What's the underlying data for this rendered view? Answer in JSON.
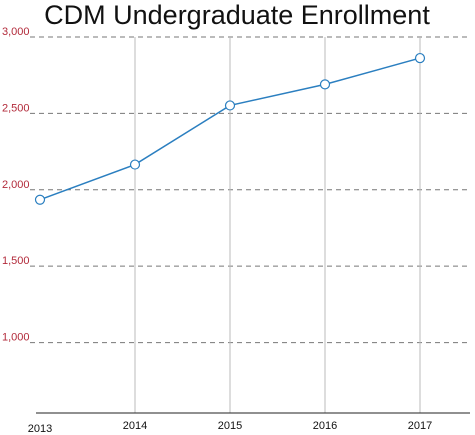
{
  "chart_data": {
    "type": "line",
    "title": "CDM Undergraduate Enrollment",
    "xlabel": "",
    "ylabel": "",
    "x": [
      "2013",
      "2014",
      "2015",
      "2016",
      "2017"
    ],
    "series": [
      {
        "values": [
          1935,
          2165,
          2552,
          2690,
          2862
        ]
      }
    ],
    "y_ticks": [
      {
        "value": 1000,
        "label": "1,000"
      },
      {
        "value": 1500,
        "label": "1,500"
      },
      {
        "value": 2000,
        "label": "2,000"
      },
      {
        "value": 2500,
        "label": "2,500"
      },
      {
        "value": 3000,
        "label": "3,000"
      }
    ],
    "ylim": [
      539,
      3000
    ],
    "grid": "horizontal dashed, vertical solid",
    "legend": "none",
    "colors": {
      "line": "#2b7fc0",
      "marker_fill": "#ffffff",
      "ytick_label": "#b22a3a",
      "hgrid": "#777777",
      "vgrid": "#bbbbbb",
      "axis": "#222222"
    }
  }
}
